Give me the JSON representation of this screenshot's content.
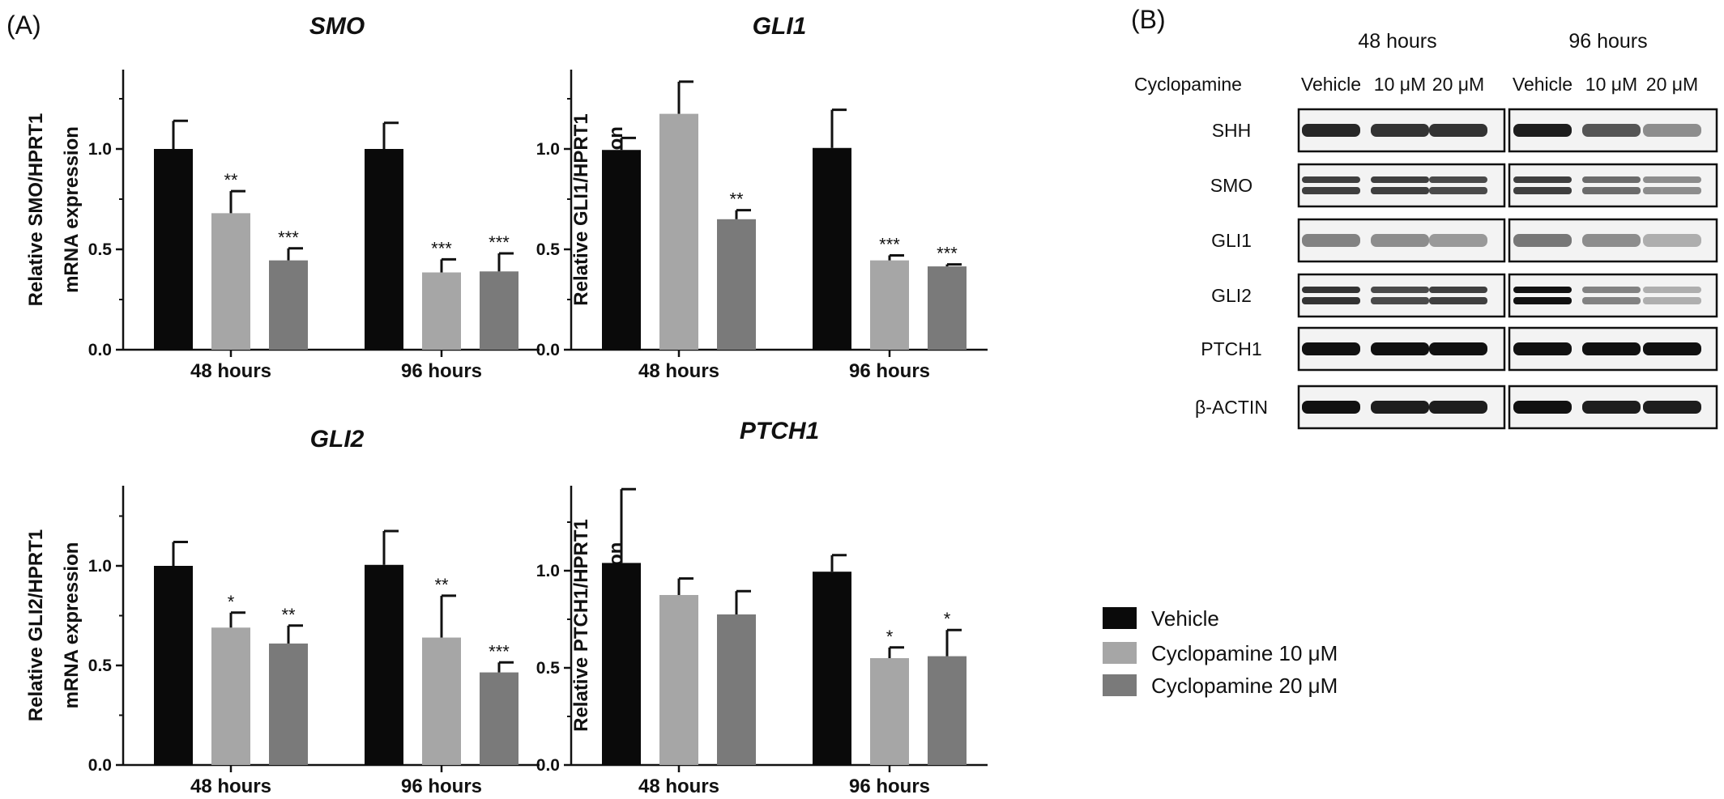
{
  "panel_labels": {
    "a": "(A)",
    "b": "(B)"
  },
  "colors": {
    "vehicle": "#0a0a0a",
    "cyc10": "#a6a6a6",
    "cyc20": "#7a7a7a",
    "axis": "#111111"
  },
  "chart_data": [
    {
      "type": "bar",
      "title": "SMO",
      "ylabel_line1": "Relative SMO/HPRT1",
      "ylabel_line2": "mRNA expression",
      "categories": [
        "48 hours",
        "96 hours"
      ],
      "ylim": [
        0,
        1.3
      ],
      "yticks": [
        "0.0",
        "0.5",
        "1.0"
      ],
      "series": [
        {
          "name": "Vehicle",
          "values": [
            1.0,
            1.0
          ],
          "errors": [
            0.14,
            0.13
          ],
          "sig": [
            "",
            ""
          ]
        },
        {
          "name": "Cyclopamine 10 μM",
          "values": [
            0.68,
            0.385
          ],
          "errors": [
            0.11,
            0.065
          ],
          "sig": [
            "**",
            "***"
          ]
        },
        {
          "name": "Cyclopamine 20 μM",
          "values": [
            0.445,
            0.39
          ],
          "errors": [
            0.06,
            0.09
          ],
          "sig": [
            "***",
            "***"
          ]
        }
      ]
    },
    {
      "type": "bar",
      "title": "GLI1",
      "ylabel_line1": "Relative GLI1/HPRT1",
      "ylabel_line2": "mRNA expression",
      "categories": [
        "48 hours",
        "96 hours"
      ],
      "ylim": [
        0,
        1.3
      ],
      "yticks": [
        "0.0",
        "0.5",
        "1.0"
      ],
      "series": [
        {
          "name": "Vehicle",
          "values": [
            0.995,
            1.005
          ],
          "errors": [
            0.06,
            0.19
          ],
          "sig": [
            "",
            ""
          ]
        },
        {
          "name": "Cyclopamine 10 μM",
          "values": [
            1.175,
            0.445
          ],
          "errors": [
            0.16,
            0.025
          ],
          "sig": [
            "",
            "***"
          ]
        },
        {
          "name": "Cyclopamine 20 μM",
          "values": [
            0.65,
            0.415
          ],
          "errors": [
            0.045,
            0.01
          ],
          "sig": [
            "**",
            "***"
          ]
        }
      ]
    },
    {
      "type": "bar",
      "title": "GLI2",
      "ylabel_line1": "Relative GLI2/HPRT1",
      "ylabel_line2": "mRNA expression",
      "categories": [
        "48 hours",
        "96 hours"
      ],
      "ylim": [
        0,
        1.3
      ],
      "yticks": [
        "0.0",
        "0.5",
        "1.0"
      ],
      "series": [
        {
          "name": "Vehicle",
          "values": [
            1.0,
            1.005
          ],
          "errors": [
            0.12,
            0.17
          ],
          "sig": [
            "",
            ""
          ]
        },
        {
          "name": "Cyclopamine 10 μM",
          "values": [
            0.69,
            0.64
          ],
          "errors": [
            0.075,
            0.21
          ],
          "sig": [
            "*",
            "**"
          ]
        },
        {
          "name": "Cyclopamine 20 μM",
          "values": [
            0.61,
            0.465
          ],
          "errors": [
            0.09,
            0.05
          ],
          "sig": [
            "**",
            "***"
          ]
        }
      ]
    },
    {
      "type": "bar",
      "title": "PTCH1",
      "ylabel_line1": "Relative PTCH1/HPRT1",
      "ylabel_line2": "mRNA expression",
      "categories": [
        "48 hours",
        "96 hours"
      ],
      "ylim": [
        0,
        1.37
      ],
      "yticks": [
        "0.0",
        "0.5",
        "1.0"
      ],
      "series": [
        {
          "name": "Vehicle",
          "values": [
            1.04,
            0.995
          ],
          "errors": [
            0.38,
            0.085
          ],
          "sig": [
            "",
            ""
          ]
        },
        {
          "name": "Cyclopamine 10 μM",
          "values": [
            0.875,
            0.55
          ],
          "errors": [
            0.085,
            0.055
          ],
          "sig": [
            "",
            "*"
          ]
        },
        {
          "name": "Cyclopamine 20 μM",
          "values": [
            0.775,
            0.56
          ],
          "errors": [
            0.12,
            0.135
          ],
          "sig": [
            "",
            "*"
          ]
        }
      ]
    }
  ],
  "legend": [
    "Vehicle",
    "Cyclopamine 10 μM",
    "Cyclopamine 20 μM"
  ],
  "western_blot": {
    "time_labels": [
      "48 hours",
      "96 hours"
    ],
    "treatment_row_label": "Cyclopamine",
    "lane_labels": [
      "Vehicle",
      "10 μM",
      "20 μM",
      "Vehicle",
      "10 μM",
      "20 μM"
    ],
    "proteins": [
      {
        "name": "SHH",
        "intensity": [
          0.9,
          0.85,
          0.85,
          0.95,
          0.7,
          0.45
        ],
        "double": false
      },
      {
        "name": "SMO",
        "intensity": [
          0.8,
          0.8,
          0.75,
          0.8,
          0.6,
          0.45
        ],
        "double": true
      },
      {
        "name": "GLI1",
        "intensity": [
          0.5,
          0.45,
          0.4,
          0.55,
          0.45,
          0.3
        ],
        "double": false
      },
      {
        "name": "GLI2",
        "intensity": [
          0.85,
          0.75,
          0.8,
          1.0,
          0.5,
          0.3
        ],
        "double": true
      },
      {
        "name": "PTCH1",
        "intensity": [
          1.0,
          1.0,
          1.0,
          1.0,
          1.0,
          1.0
        ],
        "double": false
      },
      {
        "name": "β-ACTIN",
        "intensity": [
          1.0,
          0.95,
          0.95,
          1.0,
          0.95,
          0.95
        ],
        "double": false
      }
    ]
  }
}
